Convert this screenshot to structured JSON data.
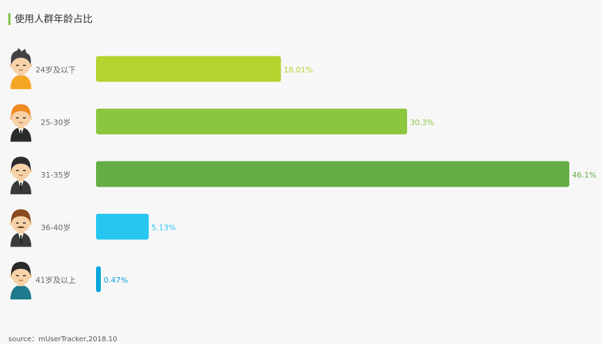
{
  "title": "使用人群年龄占比",
  "source": "source：mUserTracker,2018.10",
  "chart_data": {
    "type": "bar",
    "orientation": "horizontal",
    "title": "使用人群年龄占比",
    "categories": [
      "24岁及以下",
      "25-30岁",
      "31-35岁",
      "36-40岁",
      "41岁及以上"
    ],
    "values": [
      18.01,
      30.3,
      46.1,
      5.13,
      0.47
    ],
    "labels": [
      "18.01%",
      "30.3%",
      "46.1%",
      "5.13%",
      "0.47%"
    ],
    "colors": [
      "#b5d430",
      "#8cc63f",
      "#64ae45",
      "#26c6f0",
      "#0aa5da"
    ],
    "xlim": [
      0,
      46.1
    ],
    "unit": "%",
    "grid": false,
    "legend": "none"
  },
  "avatars": [
    {
      "icon": "young-man-avatar-icon",
      "hair": "#444444",
      "shirt": "#f5a623"
    },
    {
      "icon": "orange-hair-man-avatar-icon",
      "hair": "#f08a24",
      "shirt": "#2b2b2b"
    },
    {
      "icon": "suit-man-avatar-icon",
      "hair": "#2b2b2b",
      "shirt": "#3a3a3a"
    },
    {
      "icon": "mustache-man-avatar-icon",
      "hair": "#8a4b20",
      "shirt": "#3a3a3a"
    },
    {
      "icon": "older-man-avatar-icon",
      "hair": "#2b2b2b",
      "shirt": "#1e7a8c"
    }
  ]
}
